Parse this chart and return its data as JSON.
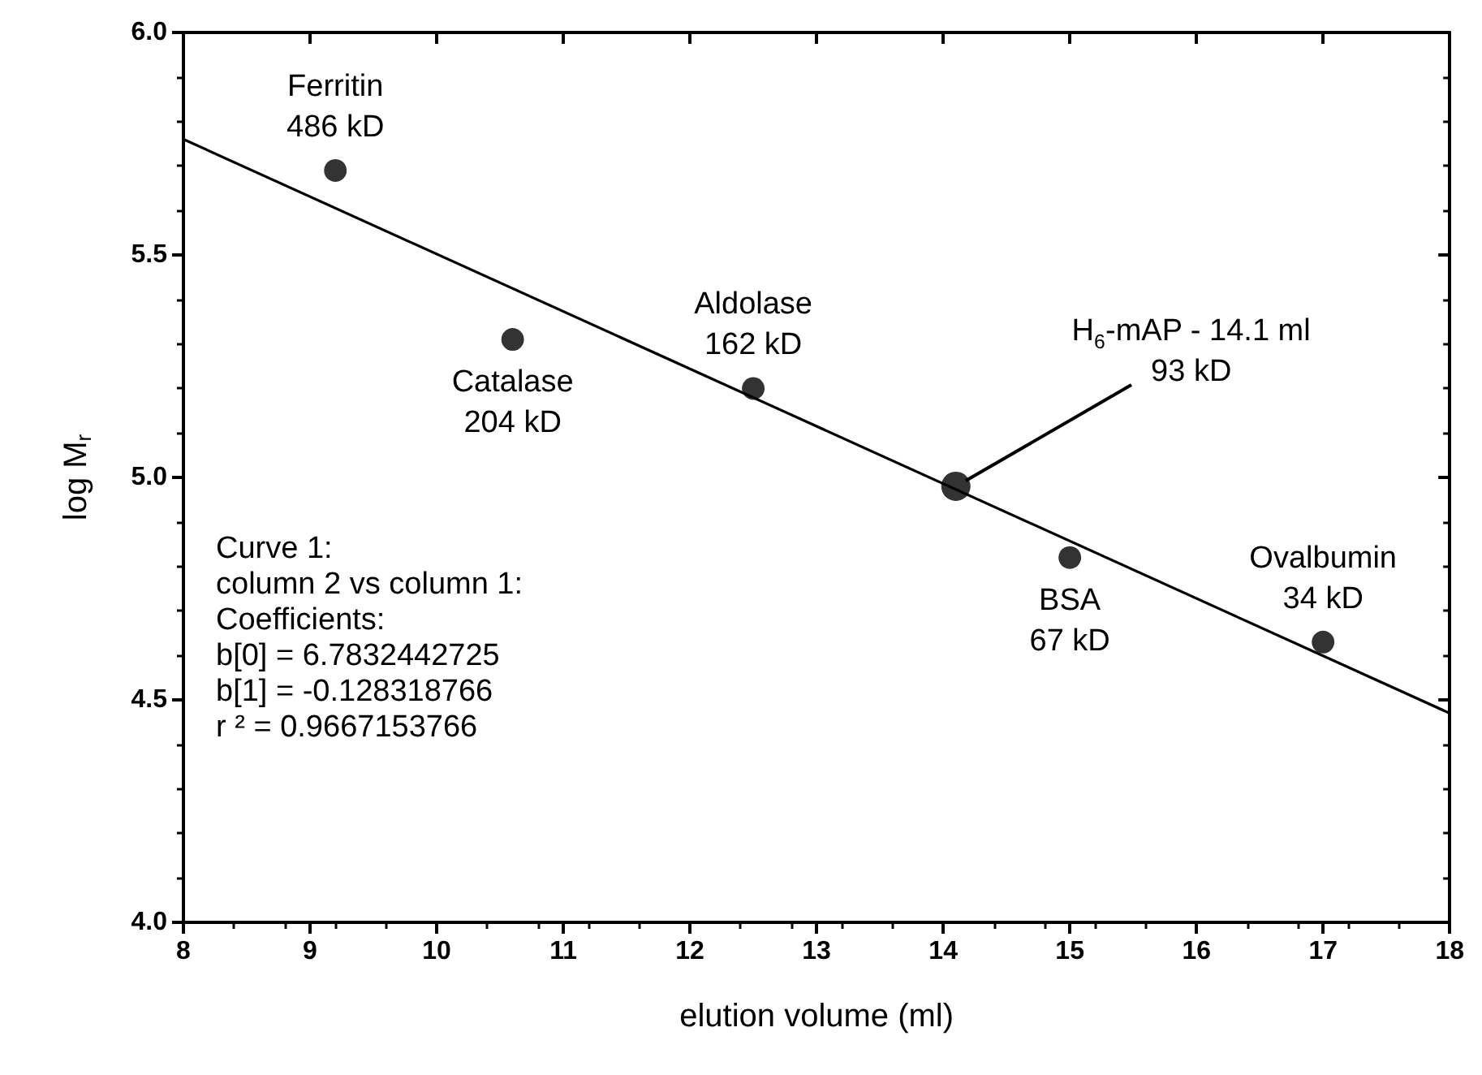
{
  "chart_data": {
    "type": "scatter",
    "xlabel": "elution volume (ml)",
    "ylabel": "log M$_{r}$",
    "xlim": [
      8,
      18
    ],
    "xticks": [
      8,
      9,
      10,
      11,
      12,
      13,
      14,
      15,
      16,
      17,
      18
    ],
    "ylim": [
      4,
      6
    ],
    "yticks": [
      {
        "value": 4,
        "label": "4.0"
      },
      {
        "value": 4.5,
        "label": "4.5"
      },
      {
        "value": 5,
        "label": "5.0"
      },
      {
        "value": 5.5,
        "label": "5.5"
      },
      {
        "value": 6,
        "label": "6.0"
      }
    ],
    "grid": false,
    "marker": "circle",
    "series": [
      {
        "color": "#000000",
        "x": [
          9.2,
          10.6,
          12.5,
          15.0,
          17.0
        ],
        "values": [
          5.69,
          5.31,
          5.2,
          4.82,
          4.63
        ]
      },
      {
        "color": "#000000",
        "x": [
          14.1
        ],
        "values": [
          4.98
        ]
      },
      {
        "type": "line",
        "marker": "none",
        "line_style": "solid",
        "color": "#000000",
        "x": [
          8,
          18
        ],
        "values": [
          5.76,
          4.47
        ]
      }
    ],
    "annotations": [
      {
        "text": "Ferritin\n486 kD",
        "x": 9.2,
        "y": 5.69
      },
      {
        "text": "Catalase\n204 kD",
        "x": 10.6,
        "y": 5.31
      },
      {
        "text": "Aldolase\n162 kD",
        "x": 12.5,
        "y": 5.2
      },
      {
        "text": "H$_{6}$-mAP - 14.1 ml\n93 kD",
        "x": 14.1,
        "y": 4.98
      },
      {
        "text": "BSA\n67 kD",
        "x": 15.0,
        "y": 4.82
      },
      {
        "text": "Ovalbumin\n34 kD",
        "x": 17.0,
        "y": 4.63
      },
      "Curve 1:\ncolumn 2 vs column 1:\nCoefficients:\nb[0] = 6.7832442725\nb[1] = -0.128318766\nr ² = 0.9667153766"
    ]
  }
}
